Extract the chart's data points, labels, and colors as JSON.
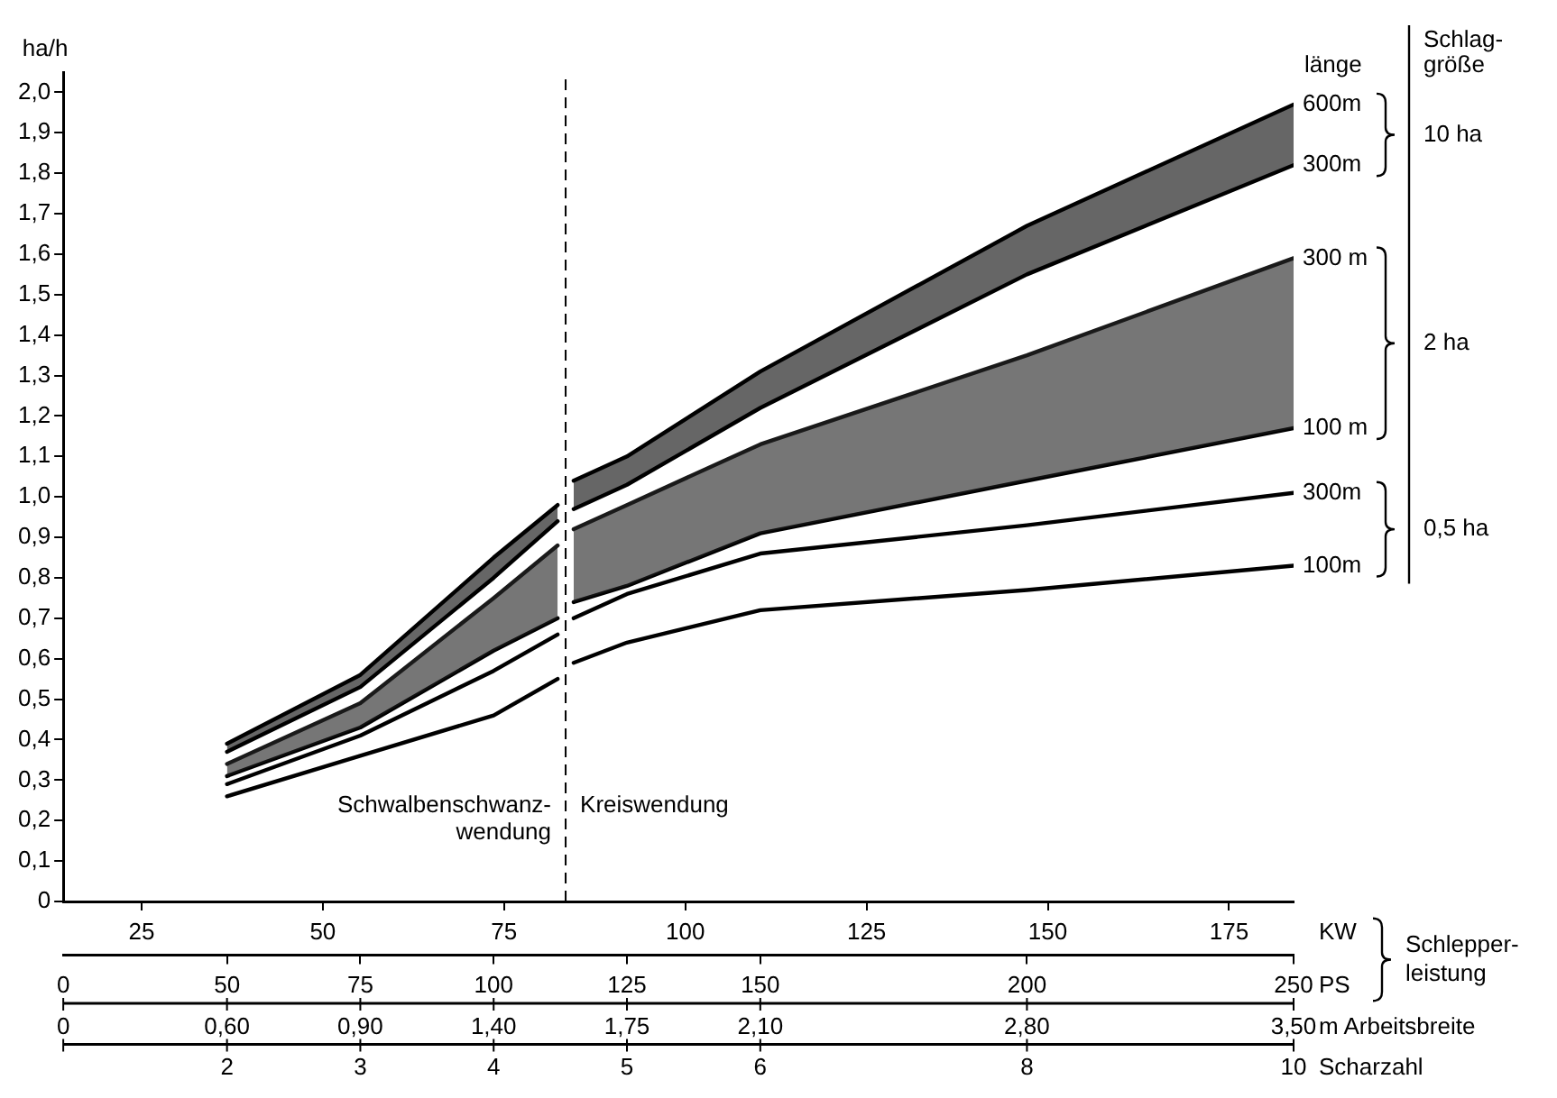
{
  "chart_data": {
    "type": "line",
    "x": [
      50,
      75,
      100,
      112,
      113.5,
      115,
      125,
      150,
      200,
      250
    ],
    "series": [
      {
        "name": "600m",
        "color": "#000000",
        "values": [
          0.39,
          0.56,
          0.85,
          0.98,
          null,
          1.04,
          1.1,
          1.31,
          1.67,
          1.97
        ],
        "lower": [
          0.37,
          0.53,
          0.8,
          0.94,
          null,
          0.97,
          1.03,
          1.22,
          1.55,
          1.82
        ],
        "upper": [
          0.39,
          0.56,
          0.85,
          0.98,
          null,
          1.04,
          1.1,
          1.31,
          1.67,
          1.97
        ]
      },
      {
        "name": "300m",
        "color": "#000000",
        "values": [
          0.37,
          0.53,
          0.8,
          0.94,
          null,
          0.97,
          1.03,
          1.22,
          1.55,
          1.82
        ]
      },
      {
        "name": "300 m",
        "color": "#1a1a1a",
        "values": [
          0.34,
          0.49,
          0.75,
          0.88,
          null,
          0.92,
          0.98,
          1.13,
          1.35,
          1.59
        ],
        "lower": [
          0.31,
          0.43,
          0.62,
          0.7,
          null,
          0.74,
          0.78,
          0.91,
          1.04,
          1.17
        ],
        "upper": [
          0.34,
          0.49,
          0.75,
          0.88,
          null,
          0.92,
          0.98,
          1.13,
          1.35,
          1.59
        ]
      },
      {
        "name": "100 m",
        "color": "#000000",
        "values": [
          0.31,
          0.43,
          0.62,
          0.7,
          null,
          0.74,
          0.78,
          0.91,
          1.04,
          1.17
        ]
      },
      {
        "name": "300m",
        "color": "#000000",
        "values": [
          0.29,
          0.41,
          0.57,
          0.66,
          null,
          0.7,
          0.76,
          0.86,
          0.93,
          1.01
        ]
      },
      {
        "name": "100m",
        "color": "#000000",
        "values": [
          0.26,
          0.36,
          0.46,
          0.55,
          null,
          0.59,
          0.64,
          0.72,
          0.77,
          0.83
        ]
      }
    ],
    "ylabel": "ha/h",
    "xlabel": "PS",
    "x2label": "KW",
    "ylim": [
      0,
      2.05
    ],
    "yticks": [
      0,
      {
        "value": 0.1,
        "label": "0,1"
      },
      {
        "value": 0.2,
        "label": "0,2"
      },
      {
        "value": 0.3,
        "label": "0,3"
      },
      {
        "value": 0.4,
        "label": "0,4"
      },
      {
        "value": 0.5,
        "label": "0,5"
      },
      {
        "value": 0.6,
        "label": "0,6"
      },
      {
        "value": 0.7,
        "label": "0,7"
      },
      {
        "value": 0.8,
        "label": "0,8"
      },
      {
        "value": 0.9,
        "label": "0,9"
      },
      {
        "value": 1.0,
        "label": "1,0"
      },
      {
        "value": 1.1,
        "label": "1,1"
      },
      {
        "value": 1.2,
        "label": "1,2"
      },
      {
        "value": 1.3,
        "label": "1,3"
      },
      {
        "value": 1.4,
        "label": "1,4"
      },
      {
        "value": 1.5,
        "label": "1,5"
      },
      {
        "value": 1.6,
        "label": "1,6"
      },
      {
        "value": 1.7,
        "label": "1,7"
      },
      {
        "value": 1.8,
        "label": "1,8"
      },
      {
        "value": 1.9,
        "label": "1,9"
      },
      {
        "value": 2.0,
        "label": "2,0"
      }
    ],
    "xlim": [
      19.3,
      250
    ],
    "xticks": [
      50,
      75,
      100,
      125,
      150,
      200,
      250
    ],
    "x2lim": [
      14.2,
      183.9
    ],
    "x2ticks": [
      25,
      50,
      75,
      100,
      125,
      150,
      175
    ],
    "ref_lines": [
      {
        "axis": "x",
        "value": 113.5,
        "line_style": "dashed"
      }
    ],
    "annotations": [
      "Schwalbenschwanz-\nwendung",
      "Kreiswendung",
      "Schlepper-\nleistung",
      "Schlag-\ngröße",
      "länge",
      "10 ha",
      "2 ha",
      "0,5 ha",
      "0\n0",
      "m Arbeitsbreite",
      "Scharzahl",
      "0,60",
      "0,90",
      "1,40",
      "1,75",
      "2,10",
      "2,80",
      "3,50",
      "2",
      "3",
      "4",
      "5",
      "6",
      "8",
      "10"
    ],
    "grid": false,
    "legend": false
  }
}
